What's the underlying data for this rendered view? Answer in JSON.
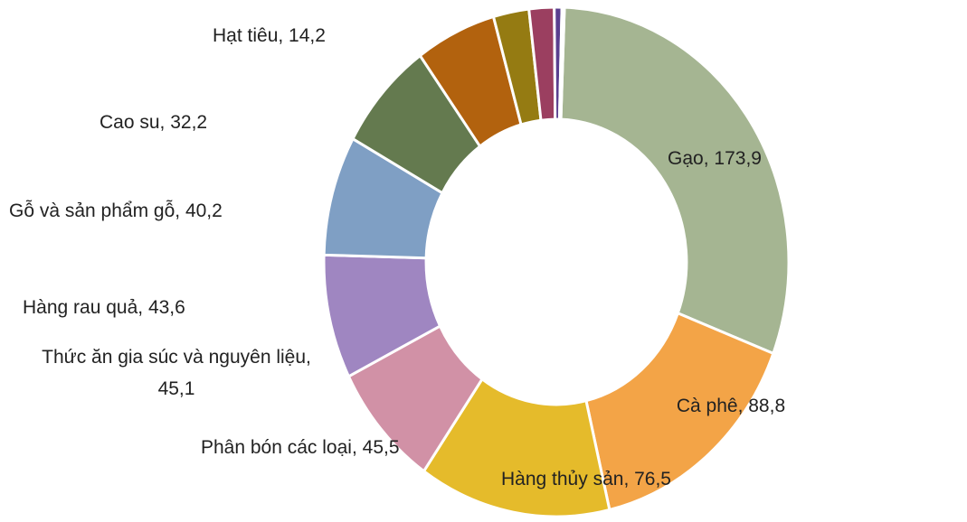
{
  "chart_data": {
    "type": "donut",
    "categories": [
      "Gạo",
      "Cà phê",
      "Hàng thủy sản",
      "Phân bón các loại",
      "Thức ăn gia súc và nguyên liệu",
      "Hàng rau quả",
      "Gỗ và sản phẩm gỗ",
      "Cao su",
      "Hạt tiêu",
      null,
      null,
      null
    ],
    "values": [
      173.9,
      88.8,
      76.5,
      45.5,
      45.1,
      43.6,
      40.2,
      32.2,
      14.2,
      10,
      3,
      1
    ],
    "value_labels": [
      "173,9",
      "88,8",
      "76,5",
      "45,5",
      "45,1",
      "43,6",
      "40,2",
      "32,2",
      "14,2",
      null,
      null,
      null
    ],
    "colors": [
      "#a5b592",
      "#f3a447",
      "#e5bb2b",
      "#d191a6",
      "#9f86c1",
      "#7f9fc4",
      "#647a4f",
      "#b2620e",
      "#957b12",
      "#9b3f60",
      "#5a3f8f",
      "#d0d0d0"
    ]
  }
}
